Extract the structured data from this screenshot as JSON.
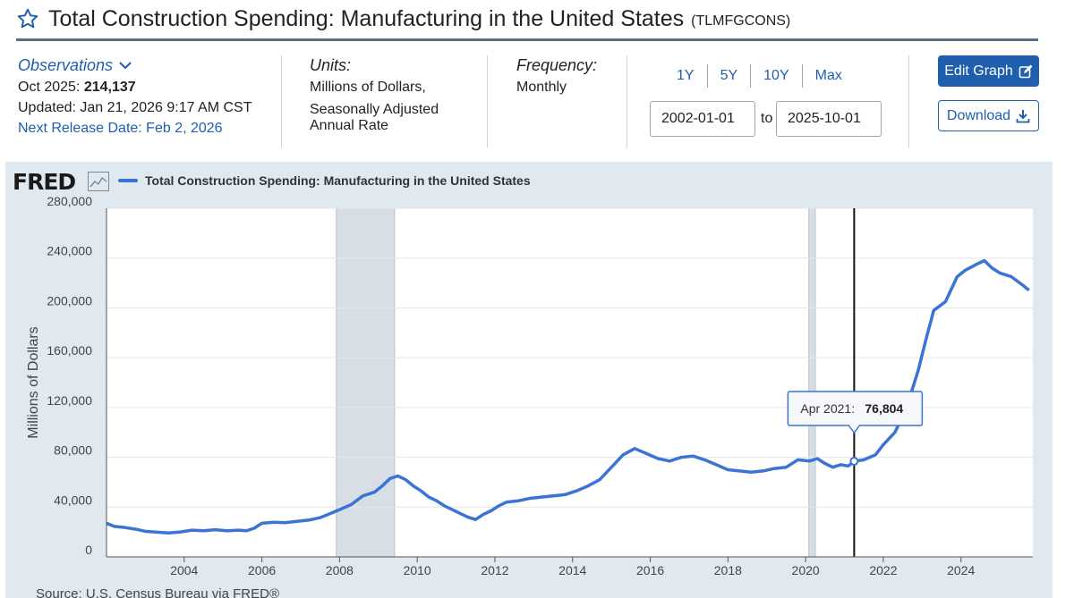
{
  "header": {
    "title": "Total Construction Spending: Manufacturing in the United States",
    "series_id": "(TLMFGCONS)"
  },
  "observations": {
    "label": "Observations",
    "latest_period": "Oct 2025:",
    "latest_value": "214,137",
    "updated": "Updated: Jan 21, 2026 9:17 AM CST",
    "next_release": "Next Release Date: Feb 2, 2026"
  },
  "units": {
    "label": "Units:",
    "line1": "Millions of Dollars,",
    "line2": "Seasonally Adjusted",
    "line3": "Annual Rate"
  },
  "frequency": {
    "label": "Frequency:",
    "value": "Monthly"
  },
  "range": {
    "buttons": [
      "1Y",
      "5Y",
      "10Y",
      "Max"
    ],
    "start": "2002-01-01",
    "to_label": "to",
    "end": "2025-10-01"
  },
  "actions": {
    "edit_label": "Edit Graph",
    "download_label": "Download"
  },
  "colors": {
    "series": "#3b74d4",
    "recession": "#d8dee5",
    "plot_bg": "#ffffff",
    "frame_bg": "#e1e9f0",
    "accent": "#1f5fae"
  },
  "chart_data": {
    "type": "line",
    "logo": "FRED",
    "series": [
      {
        "name": "Total Construction Spending: Manufacturing in the United States",
        "points": [
          [
            2002.0,
            27000
          ],
          [
            2002.2,
            24500
          ],
          [
            2002.5,
            23500
          ],
          [
            2002.8,
            22000
          ],
          [
            2003.0,
            20500
          ],
          [
            2003.3,
            19800
          ],
          [
            2003.6,
            19200
          ],
          [
            2003.9,
            20000
          ],
          [
            2004.2,
            21500
          ],
          [
            2004.5,
            21000
          ],
          [
            2004.8,
            21800
          ],
          [
            2005.1,
            21000
          ],
          [
            2005.4,
            21500
          ],
          [
            2005.6,
            21000
          ],
          [
            2005.8,
            23000
          ],
          [
            2006.0,
            27000
          ],
          [
            2006.3,
            27800
          ],
          [
            2006.6,
            27500
          ],
          [
            2006.9,
            28500
          ],
          [
            2007.2,
            29500
          ],
          [
            2007.5,
            31500
          ],
          [
            2007.7,
            34000
          ],
          [
            2008.0,
            38000
          ],
          [
            2008.3,
            42000
          ],
          [
            2008.6,
            49000
          ],
          [
            2008.9,
            52000
          ],
          [
            2009.1,
            57000
          ],
          [
            2009.3,
            63000
          ],
          [
            2009.5,
            65000
          ],
          [
            2009.7,
            62000
          ],
          [
            2009.9,
            57000
          ],
          [
            2010.1,
            53000
          ],
          [
            2010.3,
            48000
          ],
          [
            2010.5,
            45000
          ],
          [
            2010.7,
            41000
          ],
          [
            2010.9,
            38000
          ],
          [
            2011.1,
            35000
          ],
          [
            2011.3,
            32000
          ],
          [
            2011.5,
            30000
          ],
          [
            2011.7,
            34000
          ],
          [
            2011.9,
            37000
          ],
          [
            2012.1,
            41000
          ],
          [
            2012.3,
            44000
          ],
          [
            2012.6,
            45000
          ],
          [
            2012.9,
            47000
          ],
          [
            2013.2,
            48000
          ],
          [
            2013.5,
            49000
          ],
          [
            2013.8,
            50000
          ],
          [
            2014.1,
            53000
          ],
          [
            2014.4,
            57000
          ],
          [
            2014.7,
            62000
          ],
          [
            2015.0,
            72000
          ],
          [
            2015.3,
            82000
          ],
          [
            2015.6,
            87000
          ],
          [
            2015.9,
            83000
          ],
          [
            2016.2,
            79000
          ],
          [
            2016.5,
            77000
          ],
          [
            2016.8,
            80000
          ],
          [
            2017.1,
            81000
          ],
          [
            2017.4,
            78000
          ],
          [
            2017.7,
            74000
          ],
          [
            2018.0,
            70000
          ],
          [
            2018.3,
            69000
          ],
          [
            2018.6,
            68000
          ],
          [
            2018.9,
            69000
          ],
          [
            2019.2,
            71000
          ],
          [
            2019.5,
            72000
          ],
          [
            2019.8,
            78000
          ],
          [
            2020.1,
            77000
          ],
          [
            2020.3,
            79000
          ],
          [
            2020.5,
            75000
          ],
          [
            2020.7,
            72000
          ],
          [
            2020.9,
            74000
          ],
          [
            2021.1,
            73000
          ],
          [
            2021.25,
            76804
          ],
          [
            2021.5,
            78000
          ],
          [
            2021.8,
            82000
          ],
          [
            2022.0,
            90000
          ],
          [
            2022.3,
            100000
          ],
          [
            2022.6,
            120000
          ],
          [
            2022.9,
            150000
          ],
          [
            2023.1,
            175000
          ],
          [
            2023.3,
            198000
          ],
          [
            2023.6,
            205000
          ],
          [
            2023.9,
            225000
          ],
          [
            2024.1,
            230000
          ],
          [
            2024.4,
            235000
          ],
          [
            2024.6,
            238000
          ],
          [
            2024.8,
            232000
          ],
          [
            2025.0,
            228000
          ],
          [
            2025.3,
            225000
          ],
          [
            2025.6,
            218000
          ],
          [
            2025.75,
            214137
          ]
        ]
      }
    ],
    "recessions": [
      [
        2007.917,
        2009.417
      ],
      [
        2020.083,
        2020.25
      ]
    ],
    "xlim": [
      2002.0,
      2025.85
    ],
    "ylim": [
      0,
      280000
    ],
    "x_ticks": [
      2004,
      2006,
      2008,
      2010,
      2012,
      2014,
      2016,
      2018,
      2020,
      2022,
      2024
    ],
    "x_tick_labels": [
      "2004",
      "2006",
      "2008",
      "2010",
      "2012",
      "2014",
      "2016",
      "2018",
      "2020",
      "2022",
      "2024"
    ],
    "y_ticks": [
      0,
      40000,
      80000,
      120000,
      160000,
      200000,
      240000,
      280000
    ],
    "y_tick_labels": [
      "0",
      "40,000",
      "80,000",
      "120,000",
      "160,000",
      "200,000",
      "240,000",
      "280,000"
    ],
    "ylabel": "Millions of Dollars",
    "tooltip": {
      "x": 2021.25,
      "y": 76804,
      "date_label": "Apr 2021:",
      "value_label": "76,804"
    },
    "source": "Source: U.S. Census Bureau via FRED®",
    "grid": true,
    "legend_placement": "top-left"
  }
}
